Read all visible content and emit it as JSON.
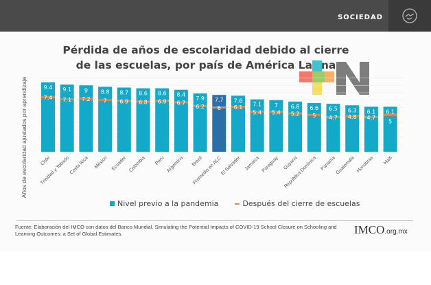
{
  "header": {
    "section": "SOCIEDAD",
    "icon": "handshake-icon"
  },
  "chart_data": {
    "type": "bar",
    "title": "Pérdida de años de escolaridad debido al cierre de las escuelas, por país de América Latina",
    "ylabel": "Años de escolaridad ajustados por aprendizaje",
    "xlabel": "",
    "ylim": [
      0,
      10
    ],
    "grid": true,
    "legend": "bottom",
    "categories": [
      "Chile",
      "Trinidad y Tobado",
      "Costa Rica",
      "México",
      "Ecuador",
      "Colombia",
      "Perú",
      "Argentina",
      "Brasil",
      "Promedio en ALC",
      "El Salvador",
      "Jamaica",
      "Paraguay",
      "Guyana",
      "República Dominica",
      "Panama",
      "Guatemala",
      "Honduras",
      "Haiti"
    ],
    "series": [
      {
        "name": "Nivel previo a la pandemia",
        "type": "bar",
        "color": "#15a9c9",
        "highlight_color": "#2b6fa8",
        "values": [
          9.4,
          9.1,
          9,
          8.8,
          8.7,
          8.6,
          8.6,
          8.4,
          7.9,
          7.7,
          7.6,
          7.1,
          7,
          6.8,
          6.6,
          6.5,
          6.3,
          6.1,
          6.1
        ]
      },
      {
        "name": "Después del cierre de escuelas",
        "type": "marker-line",
        "color": "#e08a4a",
        "values": [
          7.4,
          7.1,
          7.2,
          7,
          6.9,
          6.8,
          6.9,
          6.7,
          6.2,
          6,
          6.1,
          5.4,
          5.4,
          5.2,
          5,
          4.7,
          4.8,
          4.7,
          5
        ]
      }
    ]
  },
  "source": "Fuente: Elaboración del IMCO con datos del Banco Mundial. Simulating the Potential Impacts of COVID-19 School Closure on Schooling and Learning Outcomes: a Set of Global Estimates.",
  "logo": {
    "imco": "IMCO",
    "domain": ".org.mx",
    "tn": "N"
  }
}
